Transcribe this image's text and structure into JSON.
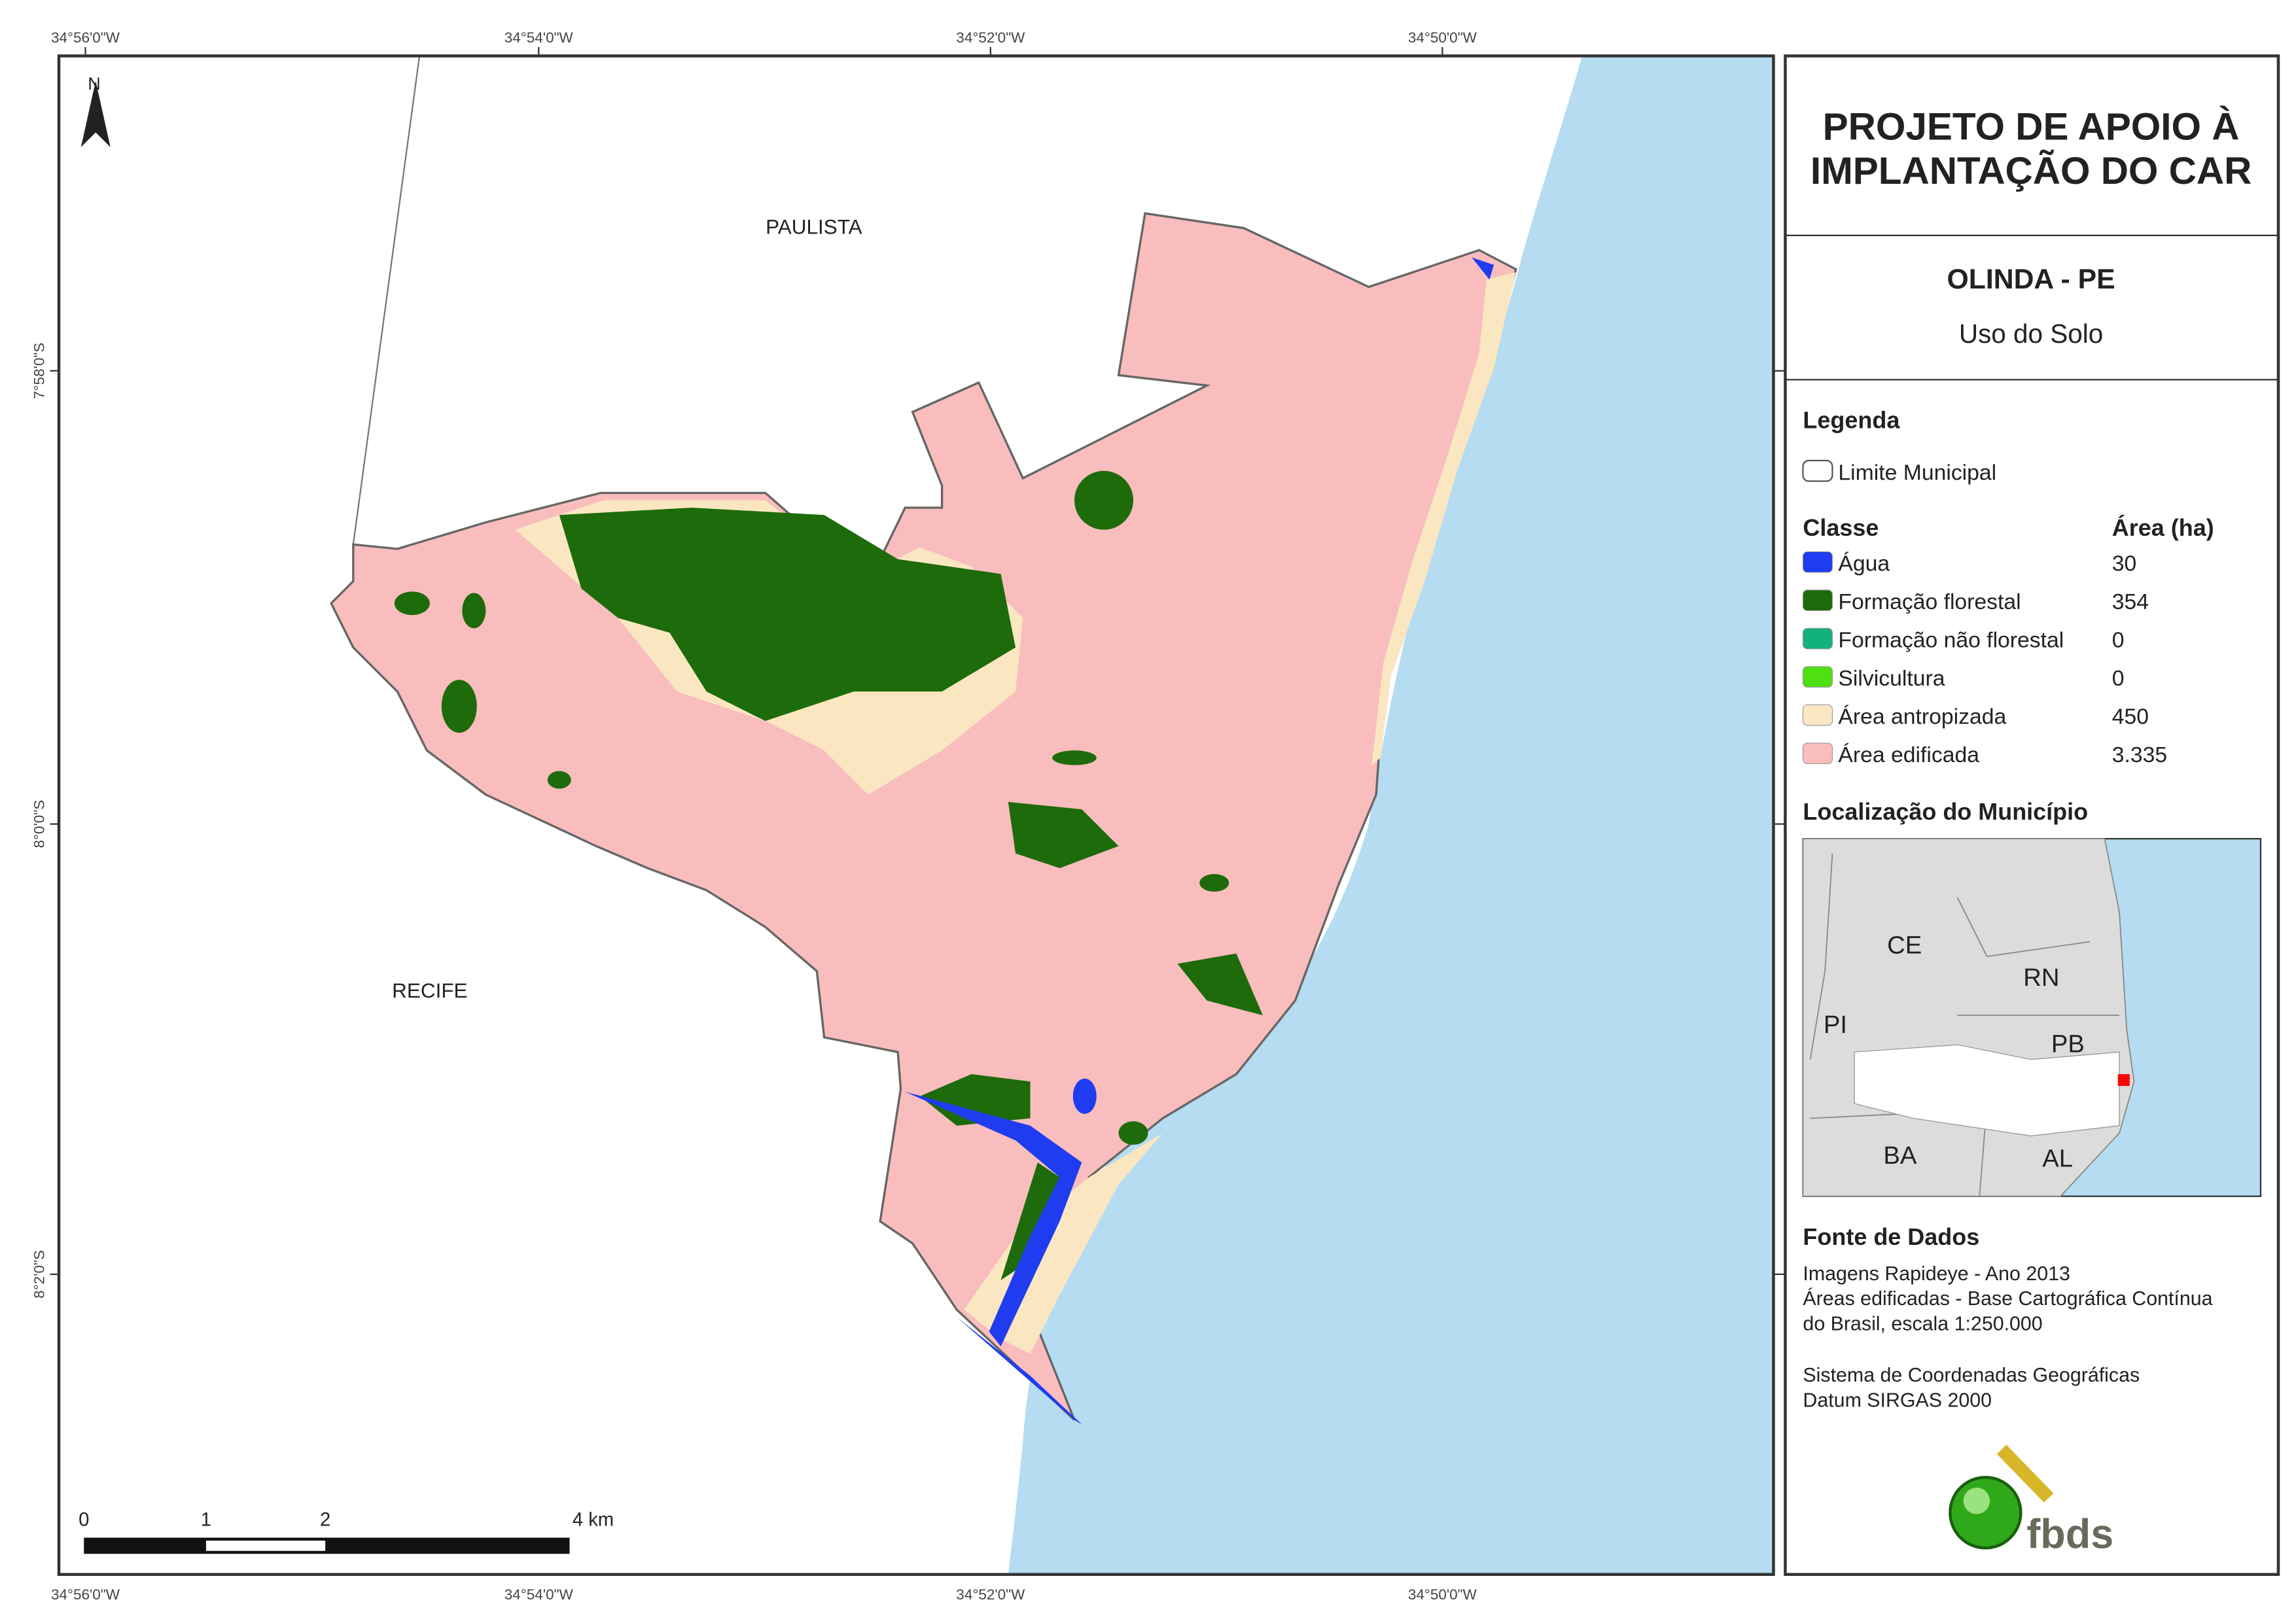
{
  "header": {
    "title_lines": [
      "PROJETO DE APOIO À",
      "IMPLANTAÇÃO DO CAR"
    ],
    "municipality": "OLINDA - PE",
    "subtitle": "Uso do Solo"
  },
  "legend": {
    "title": "Legenda",
    "boundary": "Limite Municipal",
    "class_header": "Classe",
    "area_header": "Área (ha)",
    "classes": [
      {
        "name": "Água",
        "area": "30",
        "color": "#1f3cf0"
      },
      {
        "name": "Formação florestal",
        "area": "354",
        "color": "#1d6b0b"
      },
      {
        "name": "Formação não florestal",
        "area": "0",
        "color": "#12b27a"
      },
      {
        "name": "Silvicultura",
        "area": "0",
        "color": "#4ee012"
      },
      {
        "name": "Área antropizada",
        "area": "450",
        "color": "#fbe6c2"
      },
      {
        "name": "Área edificada",
        "area": "3.335",
        "color": "#f9bdbd"
      }
    ]
  },
  "location": {
    "title": "Localização do Município",
    "states": [
      "CE",
      "RN",
      "PI",
      "PB",
      "BA",
      "AL"
    ]
  },
  "sources": {
    "title": "Fonte de Dados",
    "lines": [
      "Imagens Rapideye - Ano 2013",
      "Áreas edificadas - Base Cartográfica Contínua",
      "do Brasil, escala 1:250.000",
      "Sistema de Coordenadas Geográficas",
      "Datum SIRGAS 2000"
    ]
  },
  "map": {
    "north": "N",
    "places": [
      "PAULISTA",
      "RECIFE"
    ],
    "longitudes": [
      "34°56'0\"W",
      "34°54'0\"W",
      "34°52'0\"W",
      "34°50'0\"W"
    ],
    "latitudes": [
      "7°58'0\"S",
      "8°0'0\"S",
      "8°2'0\"S"
    ],
    "scale_labels": [
      "0",
      "1",
      "2",
      "4 km"
    ]
  },
  "logo": "fbds"
}
